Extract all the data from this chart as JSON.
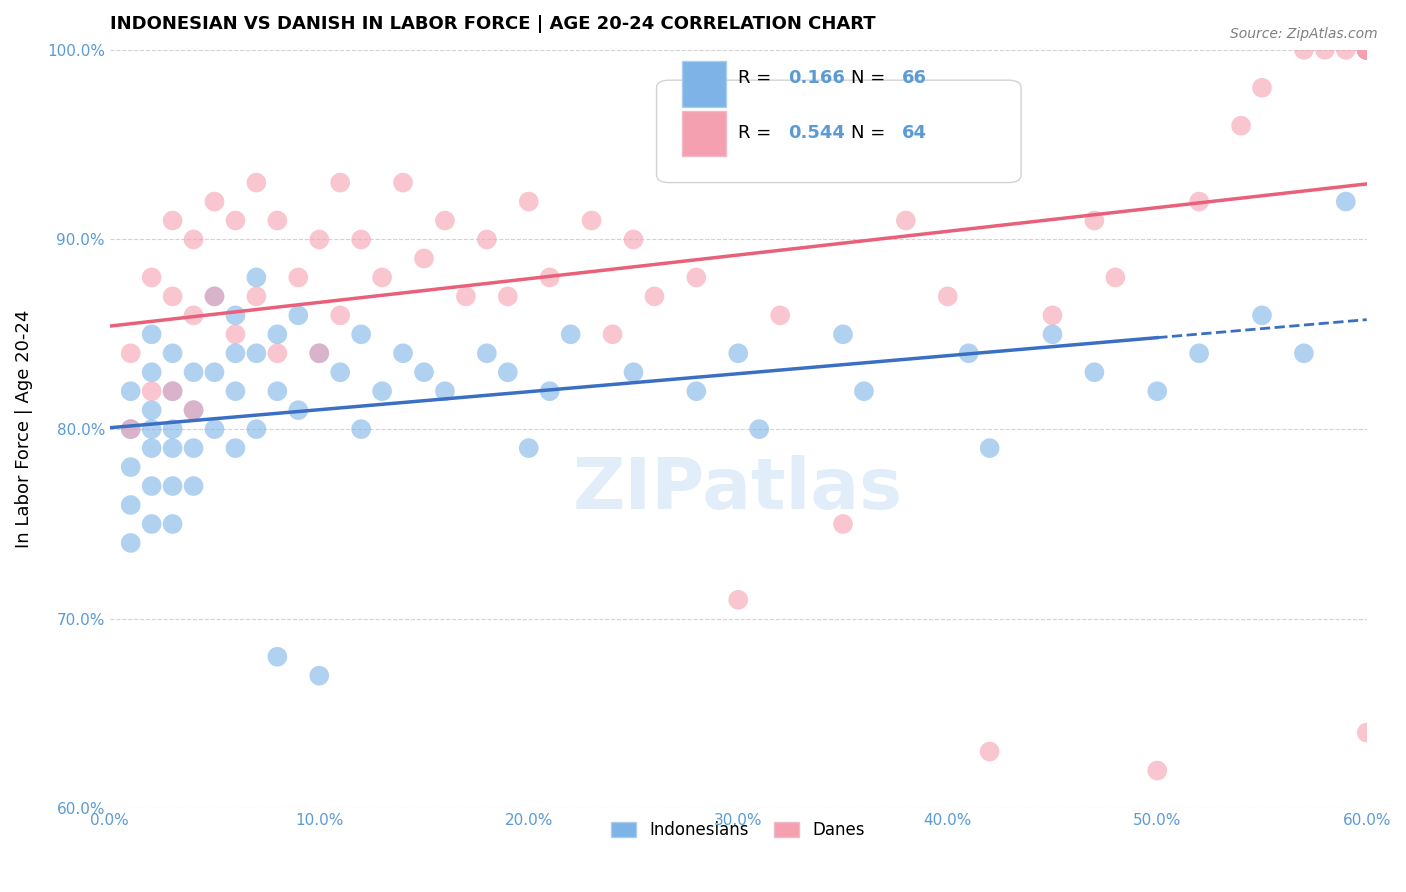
{
  "title": "INDONESIAN VS DANISH IN LABOR FORCE | AGE 20-24 CORRELATION CHART",
  "source": "Source: ZipAtlas.com",
  "xlabel": "",
  "ylabel": "In Labor Force | Age 20-24",
  "xlim": [
    0.0,
    0.6
  ],
  "ylim": [
    0.6,
    1.0
  ],
  "xticks": [
    0.0,
    0.1,
    0.2,
    0.3,
    0.4,
    0.5,
    0.6
  ],
  "xticklabels": [
    "0.0%",
    "10.0%",
    "20.0%",
    "30.0%",
    "40.0%",
    "50.0%",
    "60.0%"
  ],
  "yticks": [
    0.6,
    0.7,
    0.8,
    0.9,
    1.0
  ],
  "yticklabels": [
    "60.0%",
    "70.0%",
    "80.0%",
    "90.0%",
    "100.0%"
  ],
  "legend_r1": "R = ",
  "legend_r1_val": "0.166",
  "legend_n1": "N = ",
  "legend_n1_val": "66",
  "legend_r2_val": "0.544",
  "legend_n2_val": "64",
  "blue_color": "#7EB3E8",
  "pink_color": "#F5A0B0",
  "blue_line_color": "#3A6FC4",
  "pink_line_color": "#E8607A",
  "axis_label_color": "#5B9BD5",
  "watermark": "ZIPatlas",
  "indonesian_x": [
    0.01,
    0.01,
    0.01,
    0.01,
    0.01,
    0.02,
    0.02,
    0.02,
    0.02,
    0.02,
    0.02,
    0.02,
    0.03,
    0.03,
    0.03,
    0.03,
    0.03,
    0.03,
    0.04,
    0.04,
    0.04,
    0.04,
    0.05,
    0.05,
    0.05,
    0.06,
    0.06,
    0.06,
    0.06,
    0.07,
    0.07,
    0.07,
    0.08,
    0.08,
    0.09,
    0.09,
    0.1,
    0.11,
    0.12,
    0.12,
    0.13,
    0.14,
    0.15,
    0.16,
    0.18,
    0.19,
    0.2,
    0.21,
    0.22,
    0.25,
    0.28,
    0.3,
    0.31,
    0.35,
    0.36,
    0.41,
    0.42,
    0.45,
    0.47,
    0.5,
    0.52,
    0.55,
    0.57,
    0.59,
    0.08,
    0.1
  ],
  "indonesian_y": [
    0.82,
    0.8,
    0.78,
    0.76,
    0.74,
    0.85,
    0.83,
    0.81,
    0.8,
    0.79,
    0.77,
    0.75,
    0.84,
    0.82,
    0.8,
    0.79,
    0.77,
    0.75,
    0.83,
    0.81,
    0.79,
    0.77,
    0.87,
    0.83,
    0.8,
    0.86,
    0.84,
    0.82,
    0.79,
    0.88,
    0.84,
    0.8,
    0.85,
    0.82,
    0.86,
    0.81,
    0.84,
    0.83,
    0.85,
    0.8,
    0.82,
    0.84,
    0.83,
    0.82,
    0.84,
    0.83,
    0.79,
    0.82,
    0.85,
    0.83,
    0.82,
    0.84,
    0.8,
    0.85,
    0.82,
    0.84,
    0.79,
    0.85,
    0.83,
    0.82,
    0.84,
    0.86,
    0.84,
    0.92,
    0.68,
    0.67
  ],
  "danish_x": [
    0.01,
    0.01,
    0.02,
    0.02,
    0.03,
    0.03,
    0.03,
    0.04,
    0.04,
    0.04,
    0.05,
    0.05,
    0.06,
    0.06,
    0.07,
    0.07,
    0.08,
    0.08,
    0.09,
    0.1,
    0.1,
    0.11,
    0.11,
    0.12,
    0.13,
    0.14,
    0.15,
    0.16,
    0.17,
    0.18,
    0.19,
    0.2,
    0.21,
    0.23,
    0.24,
    0.25,
    0.26,
    0.28,
    0.3,
    0.32,
    0.35,
    0.38,
    0.4,
    0.42,
    0.45,
    0.47,
    0.48,
    0.5,
    0.52,
    0.54,
    0.55,
    0.57,
    0.58,
    0.59,
    0.6,
    0.6,
    0.6,
    0.6,
    0.6,
    0.6,
    0.6,
    0.6,
    0.6,
    0.6
  ],
  "danish_y": [
    0.84,
    0.8,
    0.88,
    0.82,
    0.91,
    0.87,
    0.82,
    0.9,
    0.86,
    0.81,
    0.92,
    0.87,
    0.91,
    0.85,
    0.93,
    0.87,
    0.91,
    0.84,
    0.88,
    0.9,
    0.84,
    0.93,
    0.86,
    0.9,
    0.88,
    0.93,
    0.89,
    0.91,
    0.87,
    0.9,
    0.87,
    0.92,
    0.88,
    0.91,
    0.85,
    0.9,
    0.87,
    0.88,
    0.71,
    0.86,
    0.75,
    0.91,
    0.87,
    0.63,
    0.86,
    0.91,
    0.88,
    0.62,
    0.92,
    0.96,
    0.98,
    1.0,
    1.0,
    1.0,
    1.0,
    1.0,
    1.0,
    1.0,
    1.0,
    1.0,
    1.0,
    1.0,
    1.0,
    0.64
  ]
}
